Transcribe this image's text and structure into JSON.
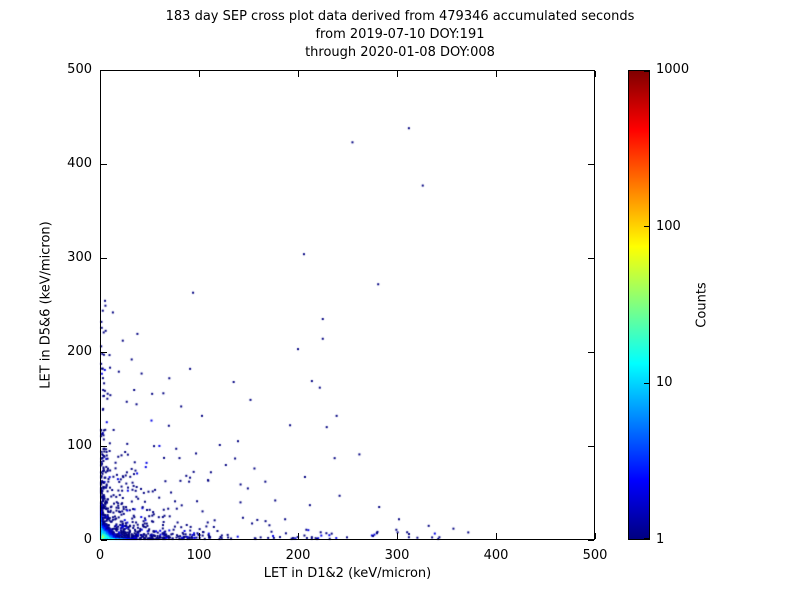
{
  "chart_data": {
    "type": "scatter",
    "title": "183 day SEP cross plot data derived from 479346 accumulated seconds",
    "subtitle_from": "from 2019-07-10 DOY:191",
    "subtitle_through": "through 2020-01-08 DOY:008",
    "xlabel": "LET in D1&2 (keV/micron)",
    "ylabel": "LET in D5&6 (keV/micron)",
    "xlim": [
      0,
      500
    ],
    "ylim": [
      0,
      500
    ],
    "xticks": [
      "0",
      "100",
      "200",
      "300",
      "400",
      "500"
    ],
    "yticks": [
      "0",
      "100",
      "200",
      "300",
      "400",
      "500"
    ],
    "grid": false,
    "colorbar": {
      "label": "Counts",
      "scale": "log",
      "min": 1,
      "max": 1000,
      "ticks": [
        1,
        10,
        100,
        1000
      ],
      "tick_labels": [
        "1",
        "10",
        "100",
        "1000"
      ],
      "colormap": "jet",
      "color_low": "#000080",
      "color_high": "#800000"
    },
    "seed": 20190710,
    "points": [
      {
        "x": 311,
        "y": 437,
        "c": 1
      },
      {
        "x": 325,
        "y": 376,
        "c": 1
      },
      {
        "x": 254,
        "y": 422,
        "c": 1
      },
      {
        "x": 280,
        "y": 271,
        "c": 1
      },
      {
        "x": 205,
        "y": 303,
        "c": 1
      },
      {
        "x": 224,
        "y": 234,
        "c": 1
      },
      {
        "x": 224,
        "y": 213,
        "c": 1
      },
      {
        "x": 199,
        "y": 202,
        "c": 1
      },
      {
        "x": 213,
        "y": 168,
        "c": 1
      },
      {
        "x": 228,
        "y": 119,
        "c": 1
      },
      {
        "x": 238,
        "y": 131,
        "c": 1
      },
      {
        "x": 93,
        "y": 262,
        "c": 1
      },
      {
        "x": 134,
        "y": 167,
        "c": 1
      },
      {
        "x": 90,
        "y": 181,
        "c": 1
      },
      {
        "x": 63,
        "y": 155,
        "c": 1
      },
      {
        "x": 41,
        "y": 176,
        "c": 1
      },
      {
        "x": 31,
        "y": 191,
        "c": 1
      },
      {
        "x": 155,
        "y": 75,
        "c": 1
      },
      {
        "x": 120,
        "y": 100,
        "c": 1
      },
      {
        "x": 141,
        "y": 58,
        "c": 1
      },
      {
        "x": 176,
        "y": 41,
        "c": 1
      },
      {
        "x": 211,
        "y": 36,
        "c": 1
      },
      {
        "x": 261,
        "y": 90,
        "c": 1
      },
      {
        "x": 236,
        "y": 86,
        "c": 1
      },
      {
        "x": 281,
        "y": 34,
        "c": 1
      },
      {
        "x": 301,
        "y": 21,
        "c": 1
      },
      {
        "x": 331,
        "y": 14,
        "c": 1
      },
      {
        "x": 356,
        "y": 11,
        "c": 1
      },
      {
        "x": 371,
        "y": 7,
        "c": 1
      },
      {
        "x": 151,
        "y": 148,
        "c": 1
      },
      {
        "x": 51,
        "y": 126,
        "c": 2
      },
      {
        "x": 76,
        "y": 96,
        "c": 1
      },
      {
        "x": 26,
        "y": 146,
        "c": 1
      },
      {
        "x": 186,
        "y": 21,
        "c": 1
      },
      {
        "x": 166,
        "y": 61,
        "c": 1
      },
      {
        "x": 111,
        "y": 71,
        "c": 1
      },
      {
        "x": 59,
        "y": 99,
        "c": 2
      },
      {
        "x": 46,
        "y": 81,
        "c": 2
      },
      {
        "x": 89,
        "y": 61,
        "c": 1
      },
      {
        "x": 241,
        "y": 46,
        "c": 1
      },
      {
        "x": 206,
        "y": 66,
        "c": 1
      },
      {
        "x": 191,
        "y": 121,
        "c": 1
      },
      {
        "x": 221,
        "y": 161,
        "c": 1
      },
      {
        "x": 96,
        "y": 91,
        "c": 1
      },
      {
        "x": 69,
        "y": 171,
        "c": 1
      },
      {
        "x": 22,
        "y": 211,
        "c": 1
      },
      {
        "x": 18,
        "y": 178,
        "c": 1
      },
      {
        "x": 12,
        "y": 241,
        "c": 1
      },
      {
        "x": 102,
        "y": 131,
        "c": 1
      },
      {
        "x": 81,
        "y": 141,
        "c": 1
      }
    ],
    "dense_cluster": {
      "peak_count": 150,
      "x_scale": 4,
      "y_scale": 4,
      "extent": 30
    },
    "bottom_edge": {
      "peak_count": 25,
      "scale": 12,
      "extent": 70
    },
    "left_edge": {
      "peak_count": 20,
      "scale": 12,
      "extent": 55
    },
    "bottom_band": {
      "count": 380,
      "exp_scale": 45,
      "uniform_max": 370,
      "y_scale": 4
    },
    "left_band": {
      "count": 260,
      "exp_scale": 40,
      "uniform_max": 265,
      "x_scale": 3.5
    },
    "diffuse": {
      "count": 240,
      "scale": 30,
      "max": 160
    },
    "mid_scatter": {
      "count": 45,
      "offset": 15,
      "scale": 45
    }
  }
}
